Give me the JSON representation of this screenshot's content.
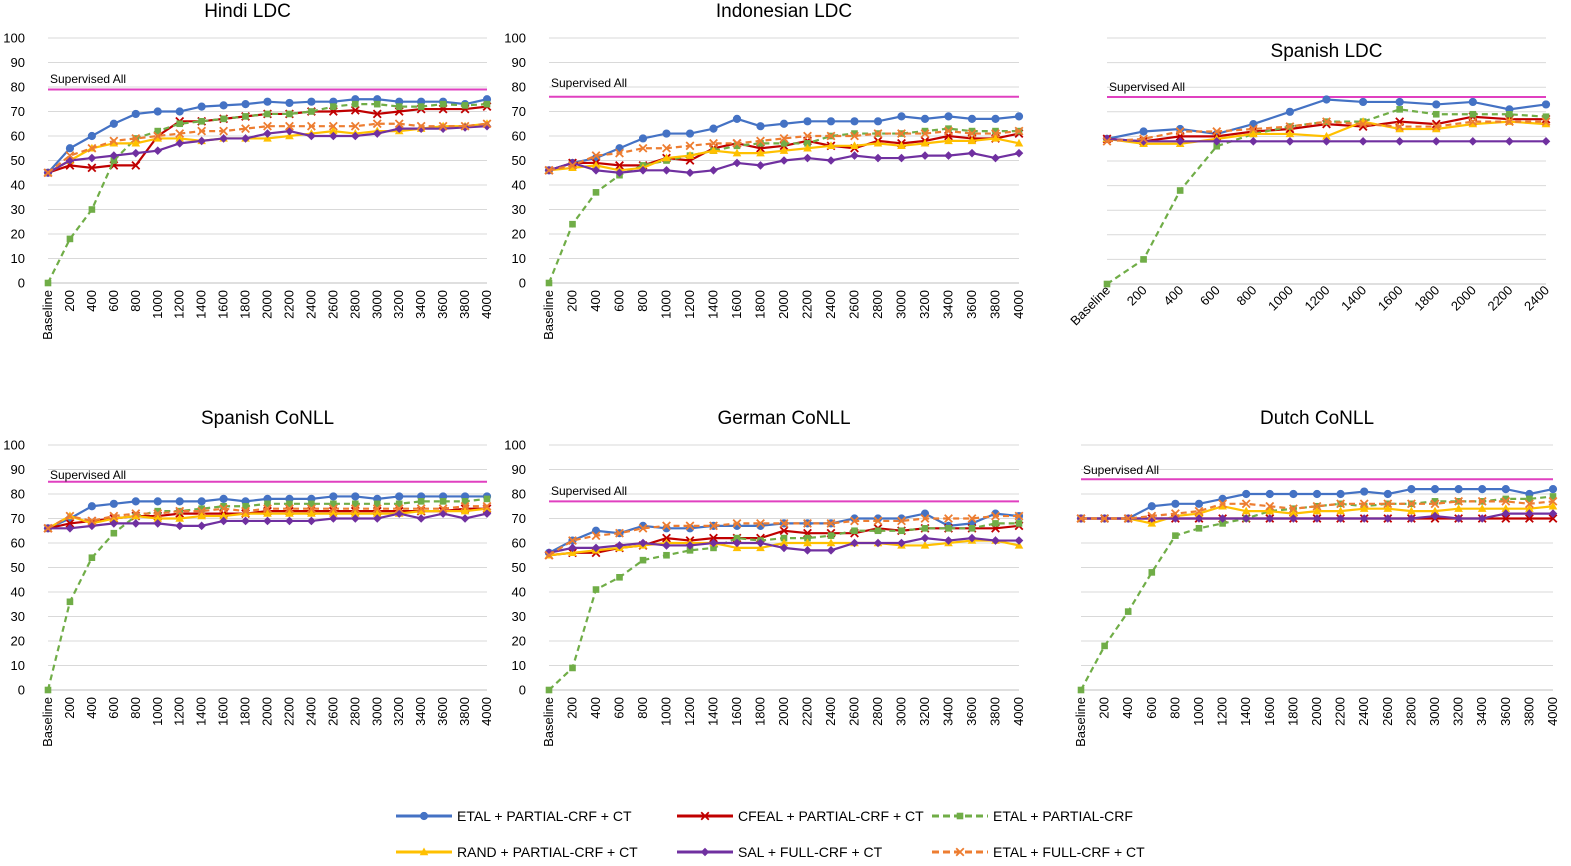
{
  "legend": [
    {
      "id": "etal_pc_ct",
      "name": "ETAL + PARTIAL-CRF + CT",
      "color": "#4472C4",
      "dash": false,
      "marker": "circle"
    },
    {
      "id": "cfeal_pc_ct",
      "name": "CFEAL + PARTIAL-CRF + CT",
      "color": "#C00000",
      "dash": false,
      "marker": "x"
    },
    {
      "id": "etal_pc",
      "name": "ETAL + PARTIAL-CRF",
      "color": "#70AD47",
      "dash": true,
      "marker": "square"
    },
    {
      "id": "rand_pc_ct",
      "name": "RAND + PARTIAL-CRF + CT",
      "color": "#FFC000",
      "dash": false,
      "marker": "triangle"
    },
    {
      "id": "sal_fc_ct",
      "name": "SAL +  FULL-CRF + CT",
      "color": "#7030A0",
      "dash": false,
      "marker": "diamond"
    },
    {
      "id": "etal_fc_ct",
      "name": "ETAL + FULL-CRF + CT",
      "color": "#ED7D31",
      "dash": true,
      "marker": "x"
    }
  ],
  "chart_data": [
    {
      "type": "line",
      "title": "Hindi  LDC",
      "ylim": [
        0,
        100
      ],
      "yticks": [
        0,
        10,
        20,
        30,
        40,
        50,
        60,
        70,
        80,
        90,
        100
      ],
      "x": [
        "Baseline",
        "200",
        "400",
        "600",
        "800",
        "1000",
        "1200",
        "1400",
        "1600",
        "1800",
        "2000",
        "2200",
        "2400",
        "2600",
        "2800",
        "3000",
        "3200",
        "3400",
        "3600",
        "3800",
        "4000"
      ],
      "reference": {
        "label": "Supervised All",
        "value": 79,
        "color": "#E040C0"
      },
      "series": [
        {
          "id": "etal_pc_ct",
          "values": [
            45,
            55,
            60,
            65,
            69,
            70,
            70,
            72,
            72.5,
            73,
            74,
            73.5,
            74,
            74,
            75,
            75,
            74,
            74,
            74,
            73,
            75
          ]
        },
        {
          "id": "cfeal_pc_ct",
          "values": [
            45,
            48,
            47,
            48,
            48,
            60,
            66,
            66,
            67,
            68,
            69,
            69,
            70,
            70,
            70.5,
            69,
            70,
            71,
            71,
            71,
            72
          ]
        },
        {
          "id": "etal_pc",
          "values": [
            0,
            18,
            30,
            50,
            59,
            62,
            65,
            66,
            67,
            68,
            69,
            69,
            70,
            72,
            73,
            73,
            72,
            72,
            73,
            72.5,
            73
          ]
        },
        {
          "id": "rand_pc_ct",
          "values": [
            45,
            50,
            55,
            57,
            57,
            59,
            59,
            58,
            59,
            59,
            59,
            60,
            61,
            62,
            61,
            62,
            62,
            63,
            64,
            64,
            65
          ]
        },
        {
          "id": "sal_fc_ct",
          "values": [
            45,
            50,
            51,
            52,
            53,
            54,
            57,
            58,
            59,
            59,
            61,
            62,
            60,
            60,
            60,
            61,
            63,
            63,
            63,
            63.5,
            64
          ]
        },
        {
          "id": "etal_fc_ct",
          "values": [
            45,
            52,
            55,
            58,
            59,
            60,
            61,
            62,
            62,
            63,
            64,
            64,
            64,
            64,
            64,
            65,
            65,
            64,
            64,
            64,
            65
          ]
        }
      ]
    },
    {
      "type": "line",
      "title": "Indonesian LDC",
      "ylim": [
        0,
        100
      ],
      "yticks": [
        0,
        10,
        20,
        30,
        40,
        50,
        60,
        70,
        80,
        90,
        100
      ],
      "x": [
        "Baseline",
        "200",
        "400",
        "600",
        "800",
        "1000",
        "1200",
        "1400",
        "1600",
        "1800",
        "2000",
        "2200",
        "2400",
        "2600",
        "2800",
        "3000",
        "3200",
        "3400",
        "3600",
        "3800",
        "4000"
      ],
      "reference": {
        "label": "Supervised All",
        "value": 76,
        "color": "#E040C0"
      },
      "series": [
        {
          "id": "etal_pc_ct",
          "values": [
            46,
            49,
            51,
            55,
            59,
            61,
            61,
            63,
            67,
            64,
            65,
            66,
            66,
            66,
            66,
            68,
            67,
            68,
            67,
            67,
            68
          ]
        },
        {
          "id": "cfeal_pc_ct",
          "values": [
            46,
            49,
            49,
            48,
            48,
            51,
            50,
            55,
            57,
            55,
            56,
            58,
            56,
            55,
            58,
            57,
            58,
            60,
            59,
            59,
            61
          ]
        },
        {
          "id": "etal_pc",
          "values": [
            0,
            24,
            37,
            44,
            48,
            50,
            52,
            54,
            56,
            57,
            57,
            57,
            60,
            61,
            61,
            61,
            62,
            63,
            62,
            62,
            62
          ]
        },
        {
          "id": "rand_pc_ct",
          "values": [
            46,
            47,
            48,
            46,
            47,
            51,
            52,
            54,
            53,
            53,
            54,
            55,
            56,
            56,
            57,
            56,
            57,
            58,
            58,
            59,
            57
          ]
        },
        {
          "id": "sal_fc_ct",
          "values": [
            46,
            49,
            46,
            45,
            46,
            46,
            45,
            46,
            49,
            48,
            50,
            51,
            50,
            52,
            51,
            51,
            52,
            52,
            53,
            51,
            53
          ]
        },
        {
          "id": "etal_fc_ct",
          "values": [
            46,
            48,
            52,
            53,
            55,
            55,
            56,
            57,
            57,
            58,
            59,
            60,
            60,
            60,
            61,
            61,
            61,
            62,
            61,
            61,
            62
          ]
        }
      ]
    },
    {
      "type": "line",
      "title": "Spanish LDC",
      "ylim": [
        0,
        100
      ],
      "yticks": [],
      "x": [
        "Baseline",
        "200",
        "400",
        "600",
        "800",
        "1000",
        "1200",
        "1400",
        "1600",
        "1800",
        "2000",
        "2200",
        "2400"
      ],
      "reference": {
        "label": "Supervised All",
        "value": 76,
        "color": "#E040C0"
      },
      "series": [
        {
          "id": "etal_pc_ct",
          "values": [
            59,
            62,
            63,
            61,
            65,
            70,
            75,
            74,
            74,
            73,
            74,
            71,
            73
          ]
        },
        {
          "id": "cfeal_pc_ct",
          "values": [
            59,
            58,
            60,
            60,
            62,
            63,
            65,
            64,
            66,
            65,
            68,
            67,
            67
          ]
        },
        {
          "id": "etal_pc",
          "values": [
            0,
            10,
            38,
            56,
            61,
            64,
            66,
            66,
            71,
            69,
            69,
            69,
            68
          ]
        },
        {
          "id": "rand_pc_ct",
          "values": [
            59,
            57,
            57,
            59,
            61,
            61,
            60,
            66,
            63,
            63,
            65,
            66,
            65
          ]
        },
        {
          "id": "sal_fc_ct",
          "values": [
            59,
            58,
            58,
            58,
            58,
            58,
            58,
            58,
            58,
            58,
            58,
            58,
            58
          ]
        },
        {
          "id": "etal_fc_ct",
          "values": [
            58,
            59,
            62,
            62,
            63,
            64,
            66,
            65,
            64,
            64,
            66,
            66,
            66
          ]
        }
      ]
    },
    {
      "type": "line",
      "title": "Spanish CoNLL",
      "ylim": [
        0,
        100
      ],
      "yticks": [
        0,
        10,
        20,
        30,
        40,
        50,
        60,
        70,
        80,
        90,
        100
      ],
      "x": [
        "Baseline",
        "200",
        "400",
        "600",
        "800",
        "1000",
        "1200",
        "1400",
        "1600",
        "1800",
        "2000",
        "2200",
        "2400",
        "2600",
        "2800",
        "3000",
        "3200",
        "3400",
        "3600",
        "3800",
        "4000"
      ],
      "reference": {
        "label": "Supervised All",
        "value": 85,
        "color": "#E040C0"
      },
      "series": [
        {
          "id": "etal_pc_ct",
          "values": [
            66,
            70,
            75,
            76,
            77,
            77,
            77,
            77,
            78,
            77,
            78,
            78,
            78,
            79,
            79,
            78,
            79,
            79,
            79,
            79,
            79
          ]
        },
        {
          "id": "cfeal_pc_ct",
          "values": [
            66,
            68,
            69,
            70,
            71,
            71,
            72,
            72,
            72,
            72,
            73,
            73,
            73,
            73,
            73,
            73,
            73,
            73,
            73,
            74,
            74
          ]
        },
        {
          "id": "etal_pc",
          "values": [
            0,
            36,
            54,
            64,
            71,
            73,
            73,
            74,
            75,
            75,
            76,
            76,
            76,
            76,
            76,
            76,
            76,
            77,
            77,
            77,
            78
          ]
        },
        {
          "id": "rand_pc_ct",
          "values": [
            66,
            71,
            68,
            70,
            71,
            70,
            70,
            71,
            71,
            72,
            72,
            72,
            72,
            72,
            72,
            72,
            72,
            73,
            73,
            73,
            74
          ]
        },
        {
          "id": "sal_fc_ct",
          "values": [
            66,
            66,
            67,
            68,
            68,
            68,
            67,
            67,
            69,
            69,
            69,
            69,
            69,
            70,
            70,
            70,
            72,
            70,
            72,
            70,
            72
          ]
        },
        {
          "id": "etal_fc_ct",
          "values": [
            66,
            71,
            69,
            71,
            72,
            72,
            73,
            73,
            74,
            73,
            74,
            74,
            74,
            74,
            74,
            74,
            74,
            74,
            74,
            75,
            75
          ]
        }
      ]
    },
    {
      "type": "line",
      "title": "German CoNLL",
      "ylim": [
        0,
        100
      ],
      "yticks": [
        0,
        10,
        20,
        30,
        40,
        50,
        60,
        70,
        80,
        90,
        100
      ],
      "x": [
        "Baseline",
        "200",
        "400",
        "600",
        "800",
        "1000",
        "1200",
        "1400",
        "1600",
        "1800",
        "2000",
        "2200",
        "2400",
        "2600",
        "2800",
        "3000",
        "3200",
        "3400",
        "3600",
        "3800",
        "4000"
      ],
      "reference": {
        "label": "Supervised All",
        "value": 77,
        "color": "#E040C0"
      },
      "series": [
        {
          "id": "etal_pc_ct",
          "values": [
            56,
            61,
            65,
            64,
            67,
            66,
            66,
            67,
            67,
            67,
            68,
            68,
            68,
            70,
            70,
            70,
            72,
            67,
            68,
            72,
            71
          ]
        },
        {
          "id": "cfeal_pc_ct",
          "values": [
            55,
            56,
            56,
            58,
            59,
            62,
            61,
            62,
            62,
            62,
            65,
            64,
            64,
            64,
            66,
            65,
            66,
            66,
            66,
            66,
            67
          ]
        },
        {
          "id": "etal_pc",
          "values": [
            0,
            9,
            41,
            46,
            53,
            55,
            57,
            58,
            62,
            61,
            62,
            62,
            63,
            65,
            65,
            65,
            66,
            66,
            66,
            68,
            68
          ]
        },
        {
          "id": "rand_pc_ct",
          "values": [
            55,
            56,
            57,
            58,
            59,
            60,
            60,
            60,
            58,
            58,
            60,
            60,
            60,
            60,
            60,
            59,
            59,
            60,
            61,
            61,
            59
          ]
        },
        {
          "id": "sal_fc_ct",
          "values": [
            56,
            58,
            58,
            59,
            60,
            59,
            59,
            60,
            60,
            60,
            58,
            57,
            57,
            60,
            60,
            60,
            62,
            61,
            62,
            61,
            61
          ]
        },
        {
          "id": "etal_fc_ct",
          "values": [
            55,
            61,
            63,
            64,
            66,
            67,
            67,
            67,
            68,
            68,
            68,
            68,
            68,
            69,
            69,
            69,
            70,
            70,
            70,
            71,
            71
          ]
        }
      ]
    },
    {
      "type": "line",
      "title": "Dutch CoNLL",
      "ylim": [
        0,
        100
      ],
      "yticks": [],
      "x": [
        "Baseline",
        "200",
        "400",
        "600",
        "800",
        "1000",
        "1200",
        "1400",
        "1600",
        "1800",
        "2000",
        "2200",
        "2400",
        "2600",
        "2800",
        "3000",
        "3200",
        "3400",
        "3600",
        "3800",
        "4000"
      ],
      "reference": {
        "label": "Supervised All",
        "value": 86,
        "color": "#E040C0"
      },
      "series": [
        {
          "id": "etal_pc_ct",
          "values": [
            70,
            70,
            70,
            75,
            76,
            76,
            78,
            80,
            80,
            80,
            80,
            80,
            81,
            80,
            82,
            82,
            82,
            82,
            82,
            80,
            82
          ]
        },
        {
          "id": "cfeal_pc_ct",
          "values": [
            70,
            70,
            70,
            70,
            70,
            70,
            70,
            70,
            70,
            70,
            70,
            70,
            70,
            70,
            70,
            70,
            70,
            70,
            70,
            70,
            70
          ]
        },
        {
          "id": "etal_pc",
          "values": [
            0,
            18,
            32,
            48,
            63,
            66,
            68,
            70,
            73,
            74,
            75,
            76,
            75,
            76,
            76,
            77,
            77,
            77,
            78,
            78,
            79
          ]
        },
        {
          "id": "rand_pc_ct",
          "values": [
            70,
            70,
            70,
            68,
            71,
            72,
            75,
            73,
            73,
            72,
            73,
            73,
            74,
            74,
            73,
            73,
            74,
            74,
            74,
            74,
            75
          ]
        },
        {
          "id": "sal_fc_ct",
          "values": [
            70,
            70,
            70,
            70,
            70,
            70,
            70,
            70,
            70,
            70,
            70,
            70,
            70,
            70,
            70,
            71,
            70,
            70,
            72,
            72,
            72
          ]
        },
        {
          "id": "etal_fc_ct",
          "values": [
            70,
            70,
            70,
            71,
            72,
            73,
            76,
            76,
            75,
            74,
            75,
            76,
            76,
            76,
            76,
            76,
            77,
            77,
            77,
            76,
            77
          ]
        }
      ]
    }
  ]
}
